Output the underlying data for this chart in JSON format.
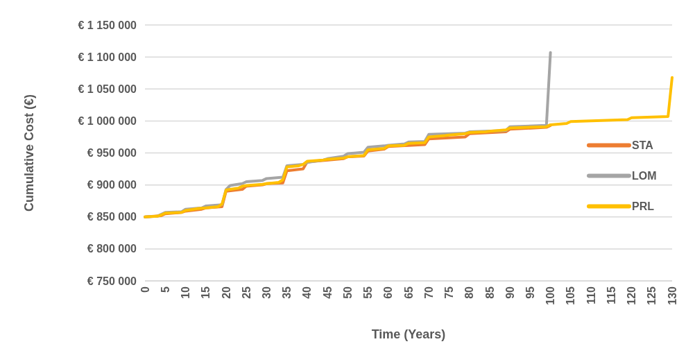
{
  "chart_data": {
    "type": "line",
    "xlabel": "Time (Years)",
    "ylabel": "Cumulative Cost (€)",
    "xlim": [
      0,
      130
    ],
    "xticks": [
      0,
      5,
      10,
      15,
      20,
      25,
      30,
      35,
      40,
      45,
      50,
      55,
      60,
      65,
      70,
      75,
      80,
      85,
      90,
      95,
      100,
      105,
      110,
      115,
      120,
      125,
      130
    ],
    "ylim": [
      750000,
      1150000
    ],
    "yticks": [
      {
        "value": 750000,
        "label": "€ 750 000"
      },
      {
        "value": 800000,
        "label": "€ 800 000"
      },
      {
        "value": 850000,
        "label": "€ 850 000"
      },
      {
        "value": 900000,
        "label": "€ 900 000"
      },
      {
        "value": 950000,
        "label": "€ 950 000"
      },
      {
        "value": 1000000,
        "label": "€ 1 000 000"
      },
      {
        "value": 1050000,
        "label": "€ 1 050 000"
      },
      {
        "value": 1100000,
        "label": "€ 1 100 000"
      },
      {
        "value": 1150000,
        "label": "€ 1 150 000"
      }
    ],
    "grid": "y",
    "legend": "right",
    "marker": "none",
    "line_style": "solid",
    "series": [
      {
        "name": "STA",
        "color": "#ed7d31",
        "x": [
          0,
          4,
          5,
          9,
          10,
          14,
          15,
          19,
          20,
          24,
          25,
          29,
          30,
          34,
          35,
          39,
          40,
          49,
          50,
          54,
          55,
          59,
          60,
          69,
          70,
          79,
          80,
          89,
          90,
          99,
          100
        ],
        "values": [
          850000,
          852000,
          855000,
          857000,
          859000,
          862000,
          864000,
          866000,
          890000,
          893000,
          898000,
          900000,
          902000,
          903000,
          922000,
          925000,
          936000,
          941000,
          944000,
          945000,
          953000,
          956000,
          960000,
          963000,
          972000,
          975000,
          980000,
          983000,
          987000,
          990000,
          993000
        ]
      },
      {
        "name": "LOM",
        "color": "#a5a5a5",
        "x": [
          0,
          3,
          4,
          5,
          9,
          10,
          14,
          15,
          19,
          20,
          21,
          24,
          25,
          29,
          30,
          34,
          35,
          39,
          40,
          44,
          45,
          49,
          50,
          54,
          55,
          59,
          60,
          64,
          65,
          69,
          70,
          79,
          80,
          89,
          90,
          99,
          100
        ],
        "values": [
          850000,
          851000,
          854000,
          857000,
          858000,
          862000,
          864000,
          867000,
          869000,
          893000,
          899000,
          902000,
          905000,
          907000,
          910000,
          912000,
          930000,
          932000,
          935000,
          939000,
          941000,
          945000,
          949000,
          951000,
          959000,
          961000,
          962000,
          964000,
          967000,
          968000,
          979000,
          981000,
          983000,
          985000,
          991000,
          993000,
          1107000
        ]
      },
      {
        "name": "PRL",
        "color": "#ffc000",
        "x": [
          0,
          3,
          4,
          5,
          9,
          10,
          12,
          13,
          15,
          18,
          19,
          20,
          21,
          23,
          24,
          25,
          29,
          30,
          33,
          34,
          35,
          38,
          39,
          40,
          44,
          45,
          49,
          50,
          54,
          55,
          59,
          60,
          64,
          65,
          69,
          70,
          74,
          75,
          79,
          80,
          84,
          85,
          89,
          90,
          99,
          100,
          104,
          105,
          119,
          120,
          129,
          130
        ],
        "values": [
          850000,
          851000,
          853000,
          856000,
          857000,
          860000,
          862000,
          863000,
          864000,
          866000,
          870000,
          892000,
          893000,
          895000,
          898000,
          899000,
          901000,
          902000,
          904000,
          908000,
          928000,
          930000,
          932000,
          937000,
          939000,
          940000,
          942000,
          944000,
          946000,
          955000,
          957000,
          961000,
          962000,
          965000,
          966000,
          975000,
          977000,
          978000,
          980000,
          982000,
          983000,
          984000,
          986000,
          989000,
          991000,
          994000,
          996000,
          999000,
          1002000,
          1005000,
          1007000,
          1068000
        ]
      }
    ]
  }
}
